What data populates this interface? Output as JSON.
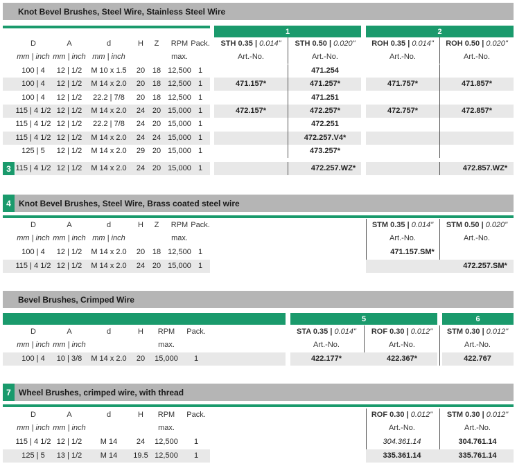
{
  "colors": {
    "accent": "#1a9a6c",
    "header_band": "#b5b5b5",
    "row_band": "#e8e8e8"
  },
  "section1": {
    "title": "Knot Bevel Brushes, Steel Wire, Stainless Steel Wire",
    "group1": "1",
    "group2": "2",
    "col_heads": {
      "D": "D",
      "A": "A",
      "d": "d",
      "H": "H",
      "Z": "Z",
      "RPM": "RPM",
      "Pack": "Pack."
    },
    "units": {
      "D": "mm | inch",
      "A": "mm | inch",
      "d": "mm | inch",
      "RPM": "max."
    },
    "products": [
      {
        "code": "STH 0.35",
        "size": "0.014\""
      },
      {
        "code": "STH 0.50",
        "size": "0.020\""
      },
      {
        "code": "ROH 0.35",
        "size": "0.014\""
      },
      {
        "code": "ROH 0.50",
        "size": "0.020\""
      }
    ],
    "artno": "Art.-No.",
    "rows": [
      {
        "D": "100 | 4",
        "A": "12 | 1/2",
        "d": "M 10 x 1.5",
        "H": "20",
        "Z": "18",
        "RPM": "12,500",
        "Pack": "1",
        "p1": "",
        "p2": "471.254",
        "p3": "",
        "p4": ""
      },
      {
        "D": "100 | 4",
        "A": "12 | 1/2",
        "d": "M 14 x 2.0",
        "H": "20",
        "Z": "18",
        "RPM": "12,500",
        "Pack": "1",
        "p1": "471.157*",
        "p2": "471.257*",
        "p3": "471.757*",
        "p4": "471.857*"
      },
      {
        "D": "100 | 4",
        "A": "12 | 1/2",
        "d": "22.2 | 7/8",
        "H": "20",
        "Z": "18",
        "RPM": "12,500",
        "Pack": "1",
        "p1": "",
        "p2": "471.251",
        "p3": "",
        "p4": ""
      },
      {
        "D": "115 | 4 1/2",
        "A": "12 | 1/2",
        "d": "M 14 x 2.0",
        "H": "24",
        "Z": "20",
        "RPM": "15,000",
        "Pack": "1",
        "p1": "472.157*",
        "p2": "472.257*",
        "p3": "472.757*",
        "p4": "472.857*"
      },
      {
        "D": "115 | 4 1/2",
        "A": "12 | 1/2",
        "d": "22.2 | 7/8",
        "H": "24",
        "Z": "20",
        "RPM": "15,000",
        "Pack": "1",
        "p1": "",
        "p2": "472.251",
        "p3": "",
        "p4": ""
      },
      {
        "D": "115 | 4 1/2",
        "A": "12 | 1/2",
        "d": "M 14 x 2.0",
        "H": "24",
        "Z": "24",
        "RPM": "15,000",
        "Pack": "1",
        "p1": "",
        "p2": "472.257.V4*",
        "p3": "",
        "p4": ""
      },
      {
        "D": "125 | 5",
        "A": "12 | 1/2",
        "d": "M 14 x 2.0",
        "H": "29",
        "Z": "20",
        "RPM": "15,000",
        "Pack": "1",
        "p1": "",
        "p2": "473.257*",
        "p3": "",
        "p4": ""
      }
    ],
    "row3": {
      "num": "3",
      "D": "115 | 4 1/2",
      "A": "12 | 1/2",
      "d": "M 14 x 2.0",
      "H": "24",
      "Z": "20",
      "RPM": "15,000",
      "Pack": "1",
      "p2": "472.257.WZ*",
      "p4": "472.857.WZ*"
    }
  },
  "section4": {
    "num": "4",
    "title": "Knot Bevel Brushes, Steel Wire, Brass coated steel wire",
    "products": [
      {
        "code": "STM 0.35",
        "size": "0.014\""
      },
      {
        "code": "STM 0.50",
        "size": "0.020\""
      }
    ],
    "rows": [
      {
        "D": "100 | 4",
        "A": "12 | 1/2",
        "d": "M 14 x 2.0",
        "H": "20",
        "Z": "18",
        "RPM": "12,500",
        "Pack": "1",
        "p1": "471.157.SM*",
        "p2": ""
      },
      {
        "D": "115 | 4 1/2",
        "A": "12 | 1/2",
        "d": "M 14 x 2.0",
        "H": "24",
        "Z": "20",
        "RPM": "15,000",
        "Pack": "1",
        "p1": "",
        "p2": "472.257.SM*"
      }
    ]
  },
  "section5": {
    "title": "Bevel Brushes, Crimped Wire",
    "group5": "5",
    "group6": "6",
    "products": [
      {
        "code": "STA 0.35",
        "size": "0.014\""
      },
      {
        "code": "ROF 0.30",
        "size": "0.012\""
      },
      {
        "code": "STM 0.30",
        "size": "0.012\""
      }
    ],
    "rows": [
      {
        "D": "100 | 4",
        "A": "10 | 3/8",
        "d": "M 14 x 2.0",
        "H": "20",
        "RPM": "15,000",
        "Pack": "1",
        "p1": "422.177*",
        "p2": "422.367*",
        "p3": "422.767"
      }
    ]
  },
  "section7": {
    "num": "7",
    "title": "Wheel Brushes, crimped wire, with thread",
    "products": [
      {
        "code": "ROF 0.30",
        "size": "0.012\""
      },
      {
        "code": "STM 0.30",
        "size": "0.012\""
      }
    ],
    "rows": [
      {
        "D": "115 | 4 1/2",
        "A": "12 | 1/2",
        "d": "M 14",
        "H": "24",
        "RPM": "12,500",
        "Pack": "1",
        "p1": "304.361.14",
        "p2": "304.761.14"
      },
      {
        "D": "125 | 5",
        "A": "13 | 1/2",
        "d": "M 14",
        "H": "19.5",
        "RPM": "12,500",
        "Pack": "1",
        "p1": "335.361.14",
        "p2": "335.761.14"
      }
    ]
  }
}
